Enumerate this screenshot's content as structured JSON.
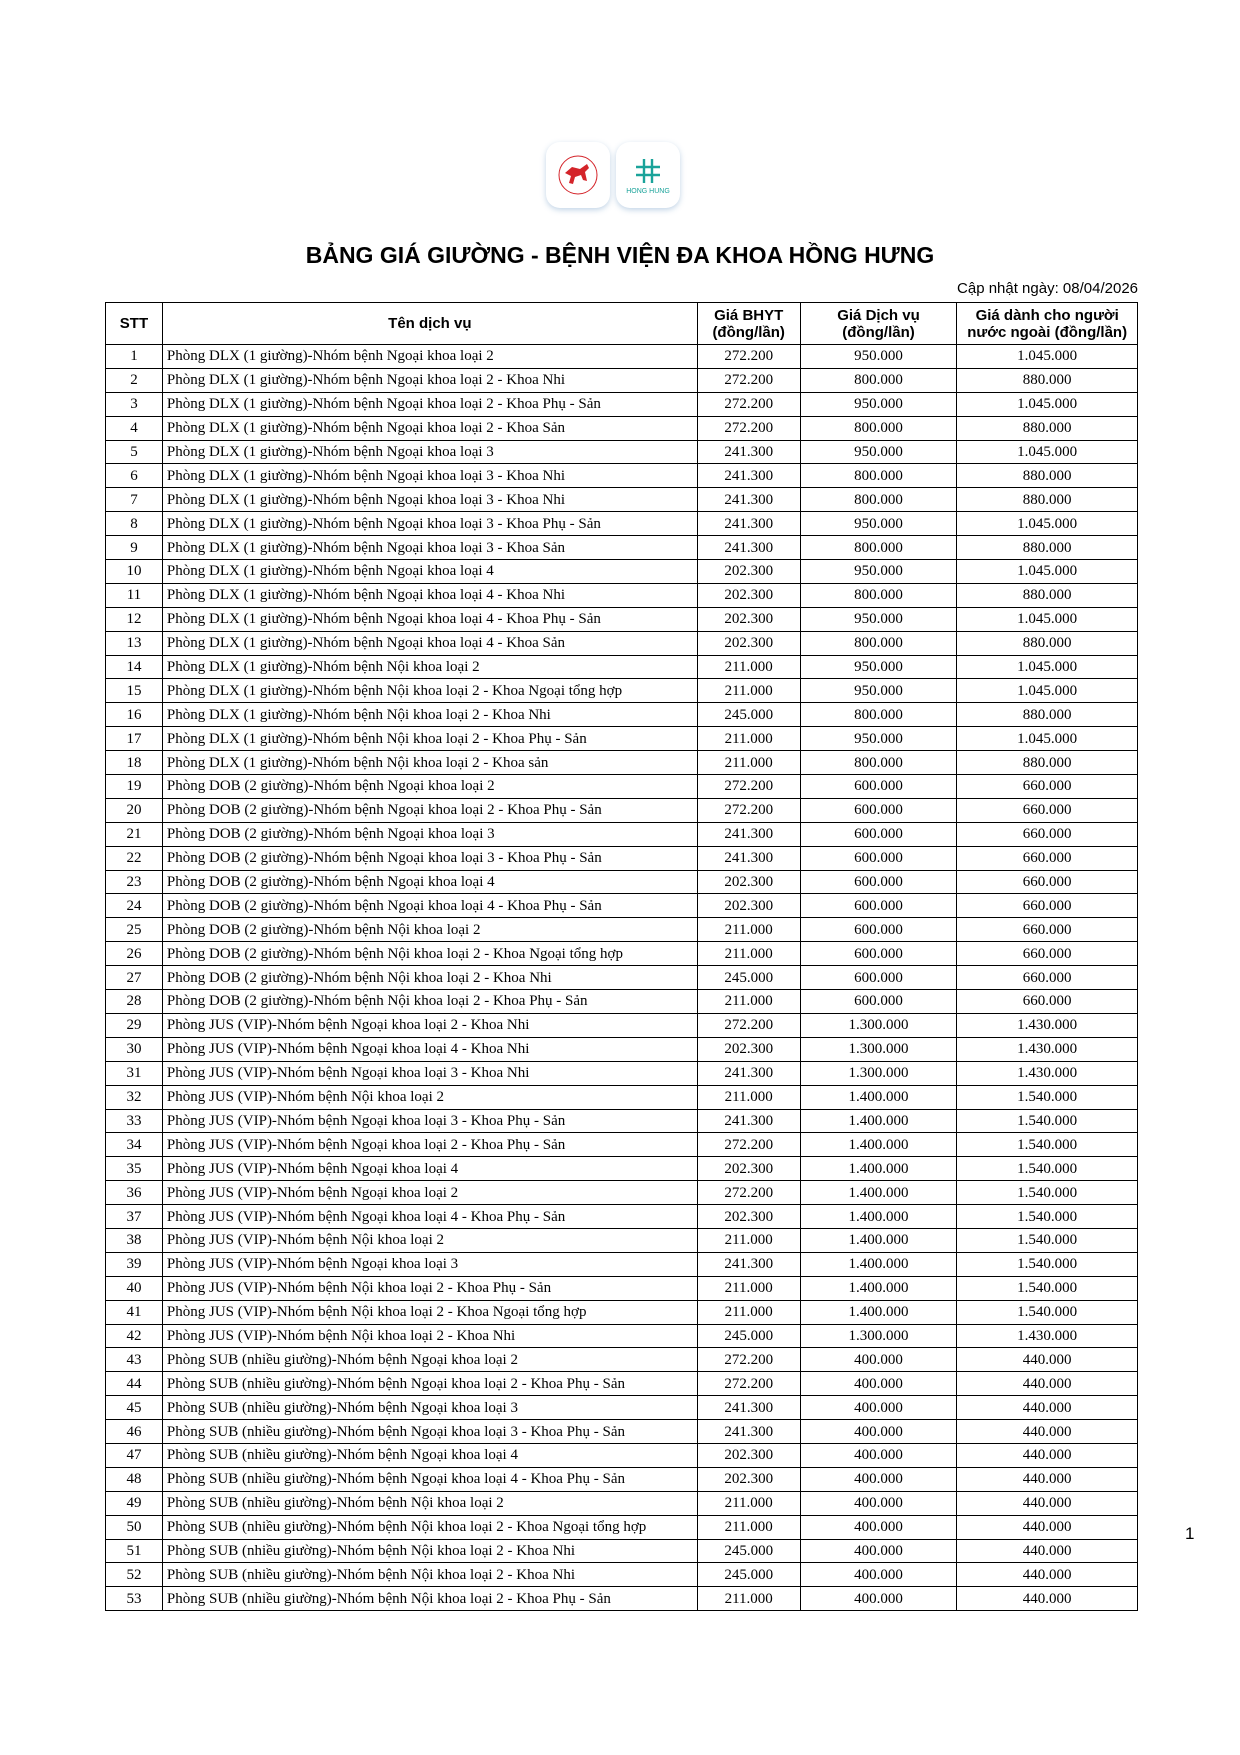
{
  "logos": {
    "left": "Hong Duc seal",
    "right_text": "HONG HUNG"
  },
  "title": "BẢNG GIÁ GIƯỜNG - BỆNH VIỆN ĐA KHOA HỒNG HƯNG",
  "updated": "Cập nhật ngày: 08/04/2026",
  "columns": [
    "STT",
    "Tên dịch vụ",
    "Giá BHYT (đồng/lần)",
    "Giá Dịch vụ (đồng/lần)",
    "Giá dành cho người nước ngoài (đồng/lần)"
  ],
  "rows": [
    [
      "1",
      "Phòng DLX (1 giường)-Nhóm bệnh Ngoại khoa loại 2",
      "272.200",
      "950.000",
      "1.045.000"
    ],
    [
      "2",
      "Phòng DLX (1 giường)-Nhóm bệnh Ngoại khoa loại 2 - Khoa Nhi",
      "272.200",
      "800.000",
      "880.000"
    ],
    [
      "3",
      "Phòng DLX (1 giường)-Nhóm bệnh Ngoại khoa loại 2 - Khoa Phụ - Sản",
      "272.200",
      "950.000",
      "1.045.000"
    ],
    [
      "4",
      "Phòng DLX (1 giường)-Nhóm bệnh Ngoại khoa loại 2 - Khoa Sản",
      "272.200",
      "800.000",
      "880.000"
    ],
    [
      "5",
      "Phòng DLX (1 giường)-Nhóm bệnh Ngoại khoa loại 3",
      "241.300",
      "950.000",
      "1.045.000"
    ],
    [
      "6",
      "Phòng DLX (1 giường)-Nhóm bệnh Ngoại khoa loại 3 - Khoa Nhi",
      "241.300",
      "800.000",
      "880.000"
    ],
    [
      "7",
      "Phòng DLX (1 giường)-Nhóm bệnh Ngoại khoa loại 3 - Khoa Nhi",
      "241.300",
      "800.000",
      "880.000"
    ],
    [
      "8",
      "Phòng DLX (1 giường)-Nhóm bệnh Ngoại khoa loại 3 - Khoa Phụ - Sản",
      "241.300",
      "950.000",
      "1.045.000"
    ],
    [
      "9",
      "Phòng DLX (1 giường)-Nhóm bệnh Ngoại khoa loại 3 - Khoa Sản",
      "241.300",
      "800.000",
      "880.000"
    ],
    [
      "10",
      "Phòng DLX (1 giường)-Nhóm bệnh Ngoại khoa loại 4",
      "202.300",
      "950.000",
      "1.045.000"
    ],
    [
      "11",
      "Phòng DLX (1 giường)-Nhóm bệnh Ngoại khoa loại 4 - Khoa Nhi",
      "202.300",
      "800.000",
      "880.000"
    ],
    [
      "12",
      "Phòng DLX (1 giường)-Nhóm bệnh Ngoại khoa loại 4 - Khoa Phụ - Sản",
      "202.300",
      "950.000",
      "1.045.000"
    ],
    [
      "13",
      "Phòng DLX (1 giường)-Nhóm bệnh Ngoại khoa loại 4 - Khoa Sản",
      "202.300",
      "800.000",
      "880.000"
    ],
    [
      "14",
      "Phòng DLX (1 giường)-Nhóm bệnh Nội khoa loại 2",
      "211.000",
      "950.000",
      "1.045.000"
    ],
    [
      "15",
      "Phòng DLX (1 giường)-Nhóm bệnh Nội khoa loại 2 - Khoa Ngoại tổng hợp",
      "211.000",
      "950.000",
      "1.045.000"
    ],
    [
      "16",
      "Phòng DLX (1 giường)-Nhóm bệnh Nội khoa loại 2 - Khoa Nhi",
      "245.000",
      "800.000",
      "880.000"
    ],
    [
      "17",
      "Phòng DLX (1 giường)-Nhóm bệnh Nội khoa loại 2 - Khoa Phụ - Sản",
      "211.000",
      "950.000",
      "1.045.000"
    ],
    [
      "18",
      "Phòng DLX (1 giường)-Nhóm bệnh Nội khoa loại 2 - Khoa sản",
      "211.000",
      "800.000",
      "880.000"
    ],
    [
      "19",
      "Phòng DOB (2 giường)-Nhóm bệnh Ngoại khoa loại 2",
      "272.200",
      "600.000",
      "660.000"
    ],
    [
      "20",
      "Phòng DOB (2 giường)-Nhóm bệnh Ngoại khoa loại 2 - Khoa Phụ - Sản",
      "272.200",
      "600.000",
      "660.000"
    ],
    [
      "21",
      "Phòng DOB (2 giường)-Nhóm bệnh Ngoại khoa loại 3",
      "241.300",
      "600.000",
      "660.000"
    ],
    [
      "22",
      "Phòng DOB (2 giường)-Nhóm bệnh Ngoại khoa loại 3 - Khoa Phụ - Sản",
      "241.300",
      "600.000",
      "660.000"
    ],
    [
      "23",
      "Phòng DOB (2 giường)-Nhóm bệnh Ngoại khoa loại 4",
      "202.300",
      "600.000",
      "660.000"
    ],
    [
      "24",
      "Phòng DOB (2 giường)-Nhóm bệnh Ngoại khoa loại 4 - Khoa Phụ - Sản",
      "202.300",
      "600.000",
      "660.000"
    ],
    [
      "25",
      "Phòng DOB (2 giường)-Nhóm bệnh Nội khoa loại 2",
      "211.000",
      "600.000",
      "660.000"
    ],
    [
      "26",
      "Phòng DOB (2 giường)-Nhóm bệnh Nội khoa loại 2 - Khoa Ngoại tổng hợp",
      "211.000",
      "600.000",
      "660.000"
    ],
    [
      "27",
      "Phòng DOB (2 giường)-Nhóm bệnh Nội khoa loại 2 - Khoa Nhi",
      "245.000",
      "600.000",
      "660.000"
    ],
    [
      "28",
      "Phòng DOB (2 giường)-Nhóm bệnh Nội khoa loại 2 - Khoa Phụ - Sản",
      "211.000",
      "600.000",
      "660.000"
    ],
    [
      "29",
      "Phòng JUS (VIP)-Nhóm bệnh Ngoại khoa loại 2 - Khoa Nhi",
      "272.200",
      "1.300.000",
      "1.430.000"
    ],
    [
      "30",
      "Phòng JUS (VIP)-Nhóm bệnh Ngoại khoa loại 4 - Khoa Nhi",
      "202.300",
      "1.300.000",
      "1.430.000"
    ],
    [
      "31",
      "Phòng JUS (VIP)-Nhóm bệnh Ngoại khoa loại 3 - Khoa Nhi",
      "241.300",
      "1.300.000",
      "1.430.000"
    ],
    [
      "32",
      "Phòng JUS (VIP)-Nhóm bệnh Nội khoa loại 2",
      "211.000",
      "1.400.000",
      "1.540.000"
    ],
    [
      "33",
      "Phòng JUS (VIP)-Nhóm bệnh Ngoại khoa loại 3 - Khoa Phụ - Sản",
      "241.300",
      "1.400.000",
      "1.540.000"
    ],
    [
      "34",
      "Phòng JUS (VIP)-Nhóm bệnh Ngoại khoa loại 2 - Khoa Phụ - Sản",
      "272.200",
      "1.400.000",
      "1.540.000"
    ],
    [
      "35",
      "Phòng JUS (VIP)-Nhóm bệnh Ngoại khoa loại 4",
      "202.300",
      "1.400.000",
      "1.540.000"
    ],
    [
      "36",
      "Phòng JUS (VIP)-Nhóm bệnh Ngoại khoa loại 2",
      "272.200",
      "1.400.000",
      "1.540.000"
    ],
    [
      "37",
      "Phòng JUS (VIP)-Nhóm bệnh Ngoại khoa loại 4 - Khoa Phụ - Sản",
      "202.300",
      "1.400.000",
      "1.540.000"
    ],
    [
      "38",
      "Phòng JUS (VIP)-Nhóm bệnh Nội khoa loại 2",
      "211.000",
      "1.400.000",
      "1.540.000"
    ],
    [
      "39",
      "Phòng JUS (VIP)-Nhóm bệnh Ngoại khoa loại 3",
      "241.300",
      "1.400.000",
      "1.540.000"
    ],
    [
      "40",
      "Phòng JUS (VIP)-Nhóm bệnh Nội khoa loại 2 - Khoa Phụ - Sản",
      "211.000",
      "1.400.000",
      "1.540.000"
    ],
    [
      "41",
      "Phòng JUS (VIP)-Nhóm bệnh Nội khoa loại 2 - Khoa Ngoại tổng hợp",
      "211.000",
      "1.400.000",
      "1.540.000"
    ],
    [
      "42",
      "Phòng JUS (VIP)-Nhóm bệnh Nội khoa loại 2 - Khoa Nhi",
      "245.000",
      "1.300.000",
      "1.430.000"
    ],
    [
      "43",
      "Phòng SUB (nhiều giường)-Nhóm bệnh Ngoại khoa loại 2",
      "272.200",
      "400.000",
      "440.000"
    ],
    [
      "44",
      "Phòng SUB (nhiều giường)-Nhóm bệnh Ngoại khoa loại 2 - Khoa Phụ - Sản",
      "272.200",
      "400.000",
      "440.000"
    ],
    [
      "45",
      "Phòng SUB (nhiều giường)-Nhóm bệnh Ngoại khoa loại 3",
      "241.300",
      "400.000",
      "440.000"
    ],
    [
      "46",
      "Phòng SUB (nhiều giường)-Nhóm bệnh Ngoại khoa loại 3 - Khoa Phụ - Sản",
      "241.300",
      "400.000",
      "440.000"
    ],
    [
      "47",
      "Phòng SUB (nhiều giường)-Nhóm bệnh Ngoại khoa loại 4",
      "202.300",
      "400.000",
      "440.000"
    ],
    [
      "48",
      "Phòng SUB (nhiều giường)-Nhóm bệnh Ngoại khoa loại 4 - Khoa Phụ - Sản",
      "202.300",
      "400.000",
      "440.000"
    ],
    [
      "49",
      "Phòng SUB (nhiều giường)-Nhóm bệnh Nội khoa loại 2",
      "211.000",
      "400.000",
      "440.000"
    ],
    [
      "50",
      "Phòng SUB (nhiều giường)-Nhóm bệnh Nội khoa loại 2 - Khoa Ngoại tổng hợp",
      "211.000",
      "400.000",
      "440.000"
    ],
    [
      "51",
      "Phòng SUB (nhiều giường)-Nhóm bệnh Nội khoa loại 2 - Khoa Nhi",
      "245.000",
      "400.000",
      "440.000"
    ],
    [
      "52",
      "Phòng SUB (nhiều giường)-Nhóm bệnh Nội khoa loại 2 - Khoa Nhi",
      "245.000",
      "400.000",
      "440.000"
    ],
    [
      "53",
      "Phòng SUB (nhiều giường)-Nhóm bệnh Nội khoa loại 2 - Khoa Phụ - Sản",
      "211.000",
      "400.000",
      "440.000"
    ]
  ],
  "page_number": "1",
  "colors": {
    "logo_red": "#d4242a",
    "logo_teal": "#1aa39a"
  }
}
